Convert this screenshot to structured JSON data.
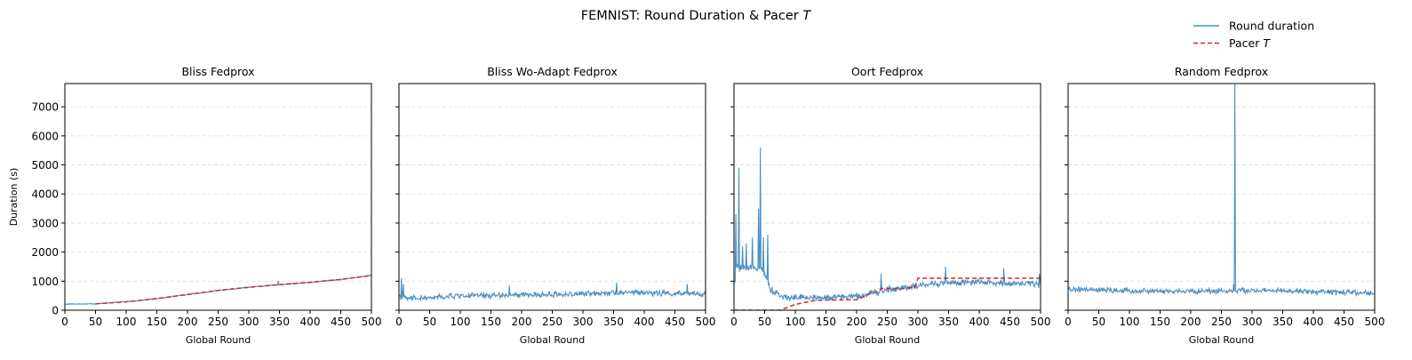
{
  "figure": {
    "suptitle_prefix": "FEMNIST: Round Duration & Pacer ",
    "suptitle_italic": "T",
    "legend": [
      {
        "name": "Round duration",
        "italic": "",
        "color": "#4a90c4",
        "dash": false
      },
      {
        "name": "Pacer ",
        "italic": "T",
        "color": "#d62728",
        "dash": true
      }
    ]
  },
  "chart_data": [
    {
      "type": "line",
      "title": "Bliss Fedprox",
      "xlabel": "Global Round",
      "ylabel": "Duration (s)",
      "xlim": [
        0,
        500
      ],
      "ylim": [
        0,
        7800
      ],
      "xticks": [
        "0",
        "50",
        "100",
        "150",
        "200",
        "250",
        "300",
        "350",
        "400",
        "450",
        "500"
      ],
      "yticks": [
        "0",
        "1000",
        "2000",
        "3000",
        "4000",
        "5000",
        "6000",
        "7000"
      ],
      "grid": "y-dashed",
      "series": [
        {
          "name": "Round duration",
          "color": "#4a90c4",
          "gen": {
            "base": [
              [
                0,
                210
              ],
              [
                50,
                220
              ],
              [
                100,
                290
              ],
              [
                150,
                400
              ],
              [
                200,
                540
              ],
              [
                250,
                680
              ],
              [
                300,
                790
              ],
              [
                350,
                880
              ],
              [
                400,
                960
              ],
              [
                450,
                1060
              ],
              [
                500,
                1200
              ]
            ],
            "noise": 18,
            "spikes": [
              [
                348,
                1010
              ]
            ]
          }
        },
        {
          "name": "Pacer T",
          "color": "#d62728",
          "dashed": true,
          "points": [
            [
              50,
              220
            ],
            [
              100,
              290
            ],
            [
              150,
              400
            ],
            [
              200,
              540
            ],
            [
              250,
              680
            ],
            [
              300,
              790
            ],
            [
              350,
              880
            ],
            [
              400,
              960
            ],
            [
              450,
              1060
            ],
            [
              500,
              1200
            ]
          ]
        }
      ]
    },
    {
      "type": "line",
      "title": "Bliss Wo-Adapt Fedprox",
      "xlabel": "Global Round",
      "ylabel": "",
      "xlim": [
        0,
        500
      ],
      "ylim": [
        0,
        7800
      ],
      "xticks": [
        "0",
        "50",
        "100",
        "150",
        "200",
        "250",
        "300",
        "350",
        "400",
        "450",
        "500"
      ],
      "yticks": [
        "0",
        "1000",
        "2000",
        "3000",
        "4000",
        "5000",
        "6000",
        "7000"
      ],
      "grid": "y-dashed",
      "series": [
        {
          "name": "Round duration",
          "color": "#4a90c4",
          "gen": {
            "base": [
              [
                0,
                500
              ],
              [
                10,
                400
              ],
              [
                50,
                420
              ],
              [
                100,
                500
              ],
              [
                200,
                520
              ],
              [
                300,
                560
              ],
              [
                350,
                620
              ],
              [
                400,
                600
              ],
              [
                500,
                550
              ]
            ],
            "noise": 120,
            "spikes": [
              [
                4,
                1100
              ],
              [
                7,
                900
              ],
              [
                180,
                850
              ],
              [
                355,
                950
              ],
              [
                470,
                900
              ]
            ]
          }
        }
      ]
    },
    {
      "type": "line",
      "title": "Oort Fedprox",
      "xlabel": "Global Round",
      "ylabel": "",
      "xlim": [
        0,
        500
      ],
      "ylim": [
        0,
        7800
      ],
      "xticks": [
        "0",
        "50",
        "100",
        "150",
        "200",
        "250",
        "300",
        "350",
        "400",
        "450",
        "500"
      ],
      "yticks": [
        "0",
        "1000",
        "2000",
        "3000",
        "4000",
        "5000",
        "6000",
        "7000"
      ],
      "grid": "y-dashed",
      "series": [
        {
          "name": "Round duration",
          "color": "#4a90c4",
          "gen": {
            "base": [
              [
                0,
                800
              ],
              [
                5,
                1500
              ],
              [
                20,
                1400
              ],
              [
                45,
                1500
              ],
              [
                60,
                700
              ],
              [
                80,
                450
              ],
              [
                150,
                430
              ],
              [
                200,
                480
              ],
              [
                230,
                600
              ],
              [
                250,
                700
              ],
              [
                300,
                850
              ],
              [
                350,
                950
              ],
              [
                400,
                950
              ],
              [
                500,
                900
              ]
            ],
            "noise": 140,
            "spikes": [
              [
                3,
                3300
              ],
              [
                8,
                4900
              ],
              [
                14,
                2200
              ],
              [
                20,
                2300
              ],
              [
                30,
                2500
              ],
              [
                40,
                3500
              ],
              [
                43,
                5600
              ],
              [
                48,
                2500
              ],
              [
                55,
                2600
              ],
              [
                240,
                1250
              ],
              [
                345,
                1500
              ],
              [
                440,
                1450
              ],
              [
                498,
                1250
              ]
            ]
          }
        },
        {
          "name": "Pacer T",
          "color": "#d62728",
          "dashed": true,
          "points": [
            [
              0,
              0
            ],
            [
              75,
              0
            ],
            [
              100,
              200
            ],
            [
              130,
              330
            ],
            [
              150,
              350
            ],
            [
              200,
              360
            ],
            [
              220,
              550
            ],
            [
              235,
              650
            ],
            [
              240,
              750
            ],
            [
              280,
              750
            ],
            [
              295,
              800
            ],
            [
              300,
              1100
            ],
            [
              500,
              1100
            ]
          ]
        }
      ]
    },
    {
      "type": "line",
      "title": "Random Fedprox",
      "xlabel": "Global Round",
      "ylabel": "",
      "xlim": [
        0,
        500
      ],
      "ylim": [
        0,
        7800
      ],
      "xticks": [
        "0",
        "50",
        "100",
        "150",
        "200",
        "250",
        "300",
        "350",
        "400",
        "450",
        "500"
      ],
      "yticks": [
        "0",
        "1000",
        "2000",
        "3000",
        "4000",
        "5000",
        "6000",
        "7000"
      ],
      "grid": "y-dashed",
      "series": [
        {
          "name": "Round duration",
          "color": "#4a90c4",
          "gen": {
            "base": [
              [
                0,
                720
              ],
              [
                100,
                660
              ],
              [
                200,
                650
              ],
              [
                300,
                680
              ],
              [
                400,
                640
              ],
              [
                500,
                580
              ]
            ],
            "noise": 110,
            "spikes": [
              [
                272,
                7800
              ],
              [
                270,
                900
              ]
            ]
          }
        }
      ]
    }
  ]
}
